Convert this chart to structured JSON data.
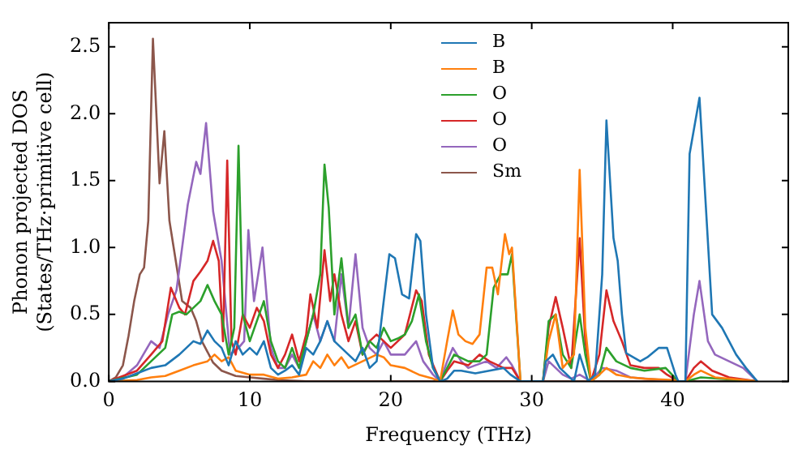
{
  "chart_data": {
    "type": "line",
    "xlabel": "Frequency (THz)",
    "ylabel": "Phonon projected DOS\n(States/THz·primitive cell)",
    "xlim": [
      0,
      48.2
    ],
    "xticks": [
      0,
      10,
      20,
      30,
      40
    ],
    "ylim": [
      0,
      2.68
    ],
    "yticks": [
      {
        "value": 0,
        "label": "0.0"
      },
      0.5,
      {
        "value": 1,
        "label": "1.0"
      },
      1.5,
      {
        "value": 2,
        "label": "2.0"
      },
      2.5
    ],
    "legend": "top",
    "marker": "none",
    "line_style": "solid",
    "series": [
      {
        "name": "B",
        "color": "#1f77b4",
        "x": [
          0,
          1,
          2,
          3,
          4,
          5,
          5.5,
          6,
          6.5,
          7,
          7.5,
          8,
          8.5,
          9,
          9.5,
          10,
          10.5,
          11,
          11.5,
          12,
          12.5,
          13,
          13.5,
          14,
          14.5,
          15,
          15.5,
          16,
          16.5,
          17,
          17.5,
          18,
          18.5,
          19,
          19.5,
          19.9,
          20.3,
          20.8,
          21.3,
          21.8,
          22.1,
          22.5,
          23,
          23.5,
          24,
          24.5,
          25,
          26,
          27,
          28,
          28.5,
          29.2,
          30.8,
          31,
          31.5,
          32,
          32.5,
          33,
          33.4,
          34,
          34.5,
          35,
          35.3,
          35.8,
          36.1,
          36.4,
          36.7,
          37.2,
          37.7,
          38.2,
          39,
          39.6,
          40.2,
          40.4,
          40.9,
          41.2,
          41.9,
          42.3,
          42.8,
          43.5,
          44,
          44.5,
          45.2,
          46
        ],
        "values": [
          0,
          0.02,
          0.06,
          0.1,
          0.12,
          0.2,
          0.25,
          0.3,
          0.28,
          0.38,
          0.3,
          0.25,
          0.12,
          0.3,
          0.2,
          0.25,
          0.2,
          0.3,
          0.1,
          0.05,
          0.08,
          0.12,
          0.05,
          0.25,
          0.2,
          0.3,
          0.45,
          0.3,
          0.25,
          0.2,
          0.15,
          0.25,
          0.1,
          0.15,
          0.6,
          0.95,
          0.92,
          0.65,
          0.62,
          1.1,
          1.05,
          0.5,
          0.1,
          0,
          0.02,
          0.08,
          0.08,
          0.06,
          0.08,
          0.1,
          0.05,
          0,
          0,
          0.15,
          0.2,
          0.1,
          0.05,
          0,
          0.2,
          0,
          0.05,
          0.8,
          1.95,
          1.07,
          0.9,
          0.5,
          0.21,
          0.18,
          0.15,
          0.18,
          0.25,
          0.25,
          0.05,
          0,
          0,
          1.7,
          2.12,
          1.4,
          0.5,
          0.4,
          0.3,
          0.2,
          0.1,
          0
        ]
      },
      {
        "name": "B",
        "color": "#ff7f0e",
        "x": [
          0,
          2,
          3,
          4,
          5,
          6,
          7,
          7.5,
          8,
          8.5,
          9,
          10,
          11,
          12,
          13,
          14,
          14.5,
          15,
          15.5,
          16,
          16.5,
          17,
          18,
          19,
          19.5,
          20,
          21,
          22,
          23,
          23.5,
          24,
          24.4,
          24.8,
          25.3,
          25.8,
          26.3,
          26.8,
          27.2,
          27.6,
          28.1,
          28.4,
          28.6,
          29.2,
          30.8,
          31.2,
          31.7,
          32.2,
          33,
          33.4,
          33.8,
          34.2,
          34.8,
          35.3,
          36,
          37,
          38,
          40,
          40.4,
          40.9,
          41.5,
          42,
          43,
          46
        ],
        "values": [
          0,
          0.01,
          0.03,
          0.04,
          0.08,
          0.12,
          0.15,
          0.2,
          0.15,
          0.18,
          0.08,
          0.05,
          0.05,
          0.02,
          0.03,
          0.05,
          0.15,
          0.1,
          0.2,
          0.12,
          0.18,
          0.1,
          0.15,
          0.2,
          0.18,
          0.12,
          0.1,
          0.05,
          0.02,
          0,
          0.3,
          0.53,
          0.35,
          0.3,
          0.28,
          0.35,
          0.85,
          0.85,
          0.65,
          1.1,
          0.95,
          1.0,
          0,
          0,
          0.3,
          0.5,
          0.1,
          0.2,
          1.58,
          0.4,
          0,
          0.05,
          0.1,
          0.05,
          0.03,
          0.02,
          0.01,
          0,
          0,
          0.05,
          0.08,
          0.03,
          0
        ]
      },
      {
        "name": "O",
        "color": "#2ca02c",
        "x": [
          0,
          2,
          3,
          4,
          4.5,
          5,
          5.5,
          6,
          6.5,
          7,
          7.5,
          8,
          8.5,
          8.9,
          9.2,
          9.5,
          10,
          10.5,
          11,
          11.5,
          12,
          12.5,
          13,
          13.5,
          14,
          14.5,
          15,
          15.3,
          15.6,
          16,
          16.5,
          17,
          17.5,
          18,
          18.5,
          19,
          19.5,
          20,
          20.5,
          21,
          21.5,
          22,
          22.5,
          23,
          23.5,
          24,
          24.5,
          25.5,
          26.3,
          26.8,
          27.3,
          27.8,
          28.3,
          28.6,
          29.2,
          30.8,
          31.2,
          31.7,
          32.2,
          32.8,
          33.4,
          33.8,
          34.2,
          34.8,
          35.3,
          36,
          37,
          38,
          39.5,
          40.4,
          40.9,
          42,
          46
        ],
        "values": [
          0,
          0.05,
          0.15,
          0.25,
          0.5,
          0.52,
          0.5,
          0.55,
          0.6,
          0.72,
          0.6,
          0.5,
          0.2,
          0.4,
          1.76,
          0.5,
          0.3,
          0.45,
          0.6,
          0.3,
          0.15,
          0.1,
          0.25,
          0.1,
          0.3,
          0.5,
          0.8,
          1.62,
          1.3,
          0.5,
          0.92,
          0.4,
          0.5,
          0.2,
          0.3,
          0.25,
          0.4,
          0.3,
          0.32,
          0.35,
          0.45,
          0.65,
          0.3,
          0.1,
          0,
          0.1,
          0.2,
          0.15,
          0.15,
          0.2,
          0.7,
          0.8,
          0.8,
          0.95,
          0,
          0,
          0.45,
          0.5,
          0.2,
          0.1,
          0.5,
          0.2,
          0,
          0.05,
          0.25,
          0.15,
          0.1,
          0.08,
          0.1,
          0,
          0,
          0.03,
          0
        ]
      },
      {
        "name": "O",
        "color": "#d62728",
        "x": [
          0,
          2,
          3,
          3.8,
          4.4,
          5,
          5.4,
          6,
          6.5,
          7,
          7.4,
          7.8,
          8.1,
          8.4,
          8.7,
          9,
          9.5,
          10,
          10.5,
          11,
          11.5,
          12,
          12.5,
          13,
          13.5,
          14,
          14.3,
          14.8,
          15.3,
          15.7,
          16,
          16.5,
          17,
          17.5,
          18,
          18.5,
          19,
          19.5,
          20,
          20.5,
          21,
          21.8,
          22.2,
          22.7,
          23.5,
          24,
          24.5,
          25.5,
          26.3,
          27,
          28,
          28.6,
          29.2,
          30.8,
          31.2,
          31.7,
          32.2,
          32.8,
          33.4,
          33.8,
          34.2,
          34.8,
          35.3,
          35.8,
          36.4,
          37,
          38,
          39,
          39.6,
          40.4,
          40.9,
          41.5,
          42,
          42.8,
          44,
          46
        ],
        "values": [
          0,
          0.08,
          0.2,
          0.3,
          0.7,
          0.55,
          0.5,
          0.75,
          0.82,
          0.9,
          1.05,
          0.9,
          0.3,
          1.65,
          0.3,
          0.2,
          0.5,
          0.4,
          0.55,
          0.45,
          0.2,
          0.1,
          0.2,
          0.35,
          0.15,
          0.35,
          0.65,
          0.4,
          0.98,
          0.6,
          0.8,
          0.5,
          0.3,
          0.45,
          0.2,
          0.3,
          0.35,
          0.3,
          0.25,
          0.3,
          0.35,
          0.68,
          0.6,
          0.2,
          0,
          0.08,
          0.15,
          0.12,
          0.2,
          0.15,
          0.1,
          0.1,
          0,
          0,
          0.4,
          0.63,
          0.4,
          0.1,
          1.07,
          0.3,
          0,
          0.2,
          0.68,
          0.45,
          0.3,
          0.12,
          0.1,
          0.1,
          0.05,
          0,
          0,
          0.1,
          0.15,
          0.08,
          0.03,
          0
        ]
      },
      {
        "name": "O",
        "color": "#9467bd",
        "x": [
          0,
          1,
          2,
          3,
          3.6,
          4.2,
          4.8,
          5.2,
          5.6,
          6.2,
          6.5,
          6.9,
          7.4,
          8,
          8.6,
          9.2,
          9.6,
          9.9,
          10.3,
          10.9,
          11.5,
          12,
          12.5,
          13,
          13.5,
          14,
          14.5,
          15,
          15.5,
          16,
          16.5,
          17,
          17.5,
          18,
          18.5,
          19,
          19.5,
          20,
          20.5,
          21,
          21.8,
          22.3,
          23,
          23.5,
          24,
          24.4,
          25,
          25.5,
          26,
          26.8,
          27.5,
          28.2,
          28.6,
          29.2,
          30.8,
          31.2,
          31.7,
          32.2,
          32.8,
          33.4,
          34.2,
          35,
          36,
          37,
          40.4,
          40.9,
          41.5,
          41.9,
          42.5,
          43,
          44,
          45,
          46
        ],
        "values": [
          0,
          0.03,
          0.12,
          0.3,
          0.25,
          0.5,
          0.68,
          1.0,
          1.32,
          1.64,
          1.55,
          1.93,
          1.27,
          0.9,
          0.2,
          0.25,
          0.3,
          1.13,
          0.6,
          1.0,
          0.25,
          0.1,
          0.1,
          0.2,
          0.1,
          0.3,
          0.5,
          0.3,
          0.45,
          0.3,
          0.8,
          0.4,
          0.95,
          0.4,
          0.25,
          0.2,
          0.3,
          0.2,
          0.2,
          0.2,
          0.3,
          0.15,
          0.05,
          0,
          0.15,
          0.25,
          0.15,
          0.1,
          0.12,
          0.15,
          0.1,
          0.18,
          0.12,
          0,
          0,
          0.15,
          0.1,
          0.05,
          0.02,
          0.05,
          0,
          0.1,
          0.08,
          0.03,
          0,
          0,
          0.5,
          0.75,
          0.3,
          0.2,
          0.15,
          0.1,
          0
        ]
      },
      {
        "name": "Sm",
        "color": "#8c564b",
        "x": [
          0,
          0.5,
          1,
          1.4,
          1.8,
          2.2,
          2.5,
          2.8,
          3.13,
          3.6,
          3.94,
          4.3,
          4.6,
          5.2,
          5.8,
          6.2,
          6.6,
          7.4,
          8,
          9,
          10,
          11,
          12,
          14,
          46
        ],
        "values": [
          0,
          0.03,
          0.12,
          0.34,
          0.6,
          0.8,
          0.85,
          1.2,
          2.56,
          1.48,
          1.87,
          1.2,
          1.0,
          0.6,
          0.55,
          0.45,
          0.3,
          0.14,
          0.08,
          0.04,
          0.03,
          0.02,
          0.01,
          0,
          0
        ]
      }
    ]
  }
}
